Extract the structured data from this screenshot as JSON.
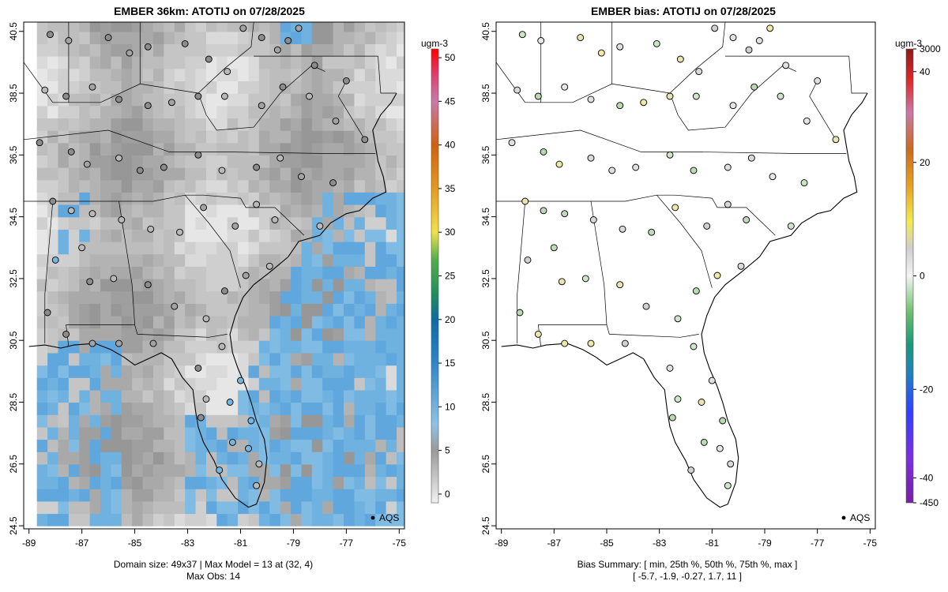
{
  "chart_data": [
    {
      "type": "heatmap",
      "title": "EMBER 36km: ATOTIJ on 07/28/2025",
      "xlabel": "",
      "ylabel": "",
      "xlim": [
        -89.2,
        -74.8
      ],
      "ylim": [
        24.4,
        40.8
      ],
      "x_ticks": [
        "-89",
        "-87",
        "-85",
        "-83",
        "-81",
        "-79",
        "-77",
        "-75"
      ],
      "y_ticks": [
        "24.5",
        "26.5",
        "28.5",
        "30.5",
        "32.5",
        "34.5",
        "36.5",
        "38.5",
        "40.5"
      ],
      "colorbar": {
        "unit": "ugm-3",
        "range": [
          -1,
          51
        ],
        "ticks": [
          "0",
          "5",
          "10",
          "15",
          "20",
          "25",
          "30",
          "35",
          "40",
          "45",
          "50"
        ]
      },
      "legend": "AQS",
      "footer": [
        "Domain size: 49x37 | Max Model = 13 at (32, 4)",
        "Max Obs: 14"
      ]
    },
    {
      "type": "scatter",
      "title": "EMBER bias: ATOTIJ on 07/28/2025",
      "xlabel": "",
      "ylabel": "",
      "xlim": [
        -89.2,
        -74.8
      ],
      "ylim": [
        24.4,
        40.8
      ],
      "x_ticks": [
        "-89",
        "-87",
        "-85",
        "-83",
        "-81",
        "-79",
        "-77",
        "-75"
      ],
      "y_ticks": [
        "24.5",
        "26.5",
        "28.5",
        "30.5",
        "32.5",
        "34.5",
        "36.5",
        "38.5",
        "40.5"
      ],
      "colorbar": {
        "unit": "ugm-3",
        "ticks": [
          "3000",
          "40",
          "20",
          "0",
          "-20",
          "-40",
          "-450"
        ]
      },
      "legend": "AQS",
      "bias_summary": {
        "stats": [
          -5.7,
          -1.9,
          -0.27,
          1.7,
          11
        ],
        "text": [
          "Bias Summary: [ min, 25th %, 50th %, 75th %, max ]",
          "[ -5.7,   -1.9,   -0.27,   1.7,   11 ]"
        ]
      }
    }
  ]
}
